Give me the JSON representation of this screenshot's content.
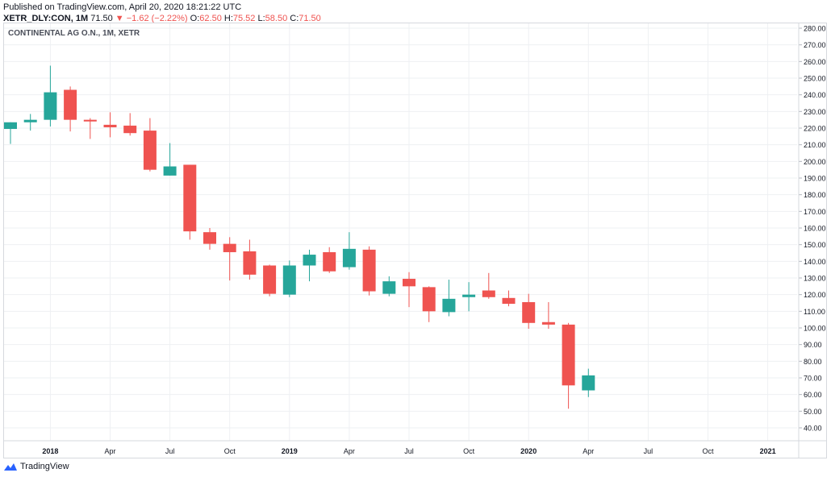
{
  "header": {
    "published": "Published on TradingView.com, April 20, 2020 18:21:22 UTC",
    "symbol": "XETR_DLY:CON, 1M",
    "last": "71.50",
    "change_arrow": "▼",
    "change": "−1.62 (−2.22%)",
    "o_label": "O:",
    "o": "62.50",
    "h_label": "H:",
    "h": "75.52",
    "l_label": "L:",
    "l": "58.50",
    "c_label": "C:",
    "c": "71.50"
  },
  "footer": {
    "brand": "TradingView",
    "logo_icon": "tradingview-logo-icon"
  },
  "colors": {
    "up": "#26a69a",
    "down": "#ef5350",
    "grid": "#eef0f3",
    "text": "#131722"
  },
  "chart_data": {
    "type": "candlestick",
    "title": "CONTINENTAL AG O.N., 1M, XETR",
    "ylim": [
      30,
      285
    ],
    "y_ticks": [
      "280.00",
      "270.00",
      "260.00",
      "250.00",
      "240.00",
      "230.00",
      "220.00",
      "210.00",
      "200.00",
      "190.00",
      "180.00",
      "170.00",
      "160.00",
      "150.00",
      "140.00",
      "130.00",
      "120.00",
      "110.00",
      "100.00",
      "90.00",
      "80.00",
      "70.00",
      "60.00",
      "50.00",
      "40.00"
    ],
    "x_ticks": [
      "2018",
      "Apr",
      "Jul",
      "Oct",
      "2019",
      "Apr",
      "Jul",
      "Oct",
      "2020",
      "Apr",
      "Jul",
      "Oct",
      "2021"
    ],
    "grid": true,
    "candles": [
      {
        "date": "2017-11",
        "o": 219.5,
        "h": 223.5,
        "l": 210.5,
        "c": 223.5
      },
      {
        "date": "2017-12",
        "o": 223.5,
        "h": 228.5,
        "l": 218.5,
        "c": 225.0
      },
      {
        "date": "2018-01",
        "o": 225.0,
        "h": 257.5,
        "l": 221.0,
        "c": 241.5
      },
      {
        "date": "2018-02",
        "o": 243.0,
        "h": 245.0,
        "l": 218.0,
        "c": 225.0
      },
      {
        "date": "2018-03",
        "o": 225.0,
        "h": 226.0,
        "l": 213.5,
        "c": 224.0
      },
      {
        "date": "2018-04",
        "o": 222.0,
        "h": 229.5,
        "l": 214.5,
        "c": 220.5
      },
      {
        "date": "2018-05",
        "o": 221.5,
        "h": 229.0,
        "l": 215.5,
        "c": 217.0
      },
      {
        "date": "2018-06",
        "o": 218.5,
        "h": 226.0,
        "l": 194.0,
        "c": 195.0
      },
      {
        "date": "2018-07",
        "o": 191.5,
        "h": 211.0,
        "l": 191.5,
        "c": 197.0
      },
      {
        "date": "2018-08",
        "o": 198.0,
        "h": 198.0,
        "l": 153.0,
        "c": 158.0
      },
      {
        "date": "2018-09",
        "o": 157.5,
        "h": 160.0,
        "l": 147.0,
        "c": 150.5
      },
      {
        "date": "2018-10",
        "o": 150.5,
        "h": 154.5,
        "l": 128.5,
        "c": 145.5
      },
      {
        "date": "2018-11",
        "o": 146.0,
        "h": 153.0,
        "l": 129.0,
        "c": 132.0
      },
      {
        "date": "2018-12",
        "o": 137.5,
        "h": 138.0,
        "l": 119.0,
        "c": 120.5
      },
      {
        "date": "2019-01",
        "o": 120.0,
        "h": 140.5,
        "l": 118.5,
        "c": 137.5
      },
      {
        "date": "2019-02",
        "o": 137.5,
        "h": 147.0,
        "l": 128.0,
        "c": 144.0
      },
      {
        "date": "2019-03",
        "o": 145.5,
        "h": 148.5,
        "l": 133.0,
        "c": 134.0
      },
      {
        "date": "2019-04",
        "o": 136.5,
        "h": 157.5,
        "l": 135.0,
        "c": 147.5
      },
      {
        "date": "2019-05",
        "o": 147.0,
        "h": 149.0,
        "l": 119.5,
        "c": 122.0
      },
      {
        "date": "2019-06",
        "o": 120.5,
        "h": 131.0,
        "l": 119.0,
        "c": 128.0
      },
      {
        "date": "2019-07",
        "o": 129.5,
        "h": 133.5,
        "l": 112.5,
        "c": 125.0
      },
      {
        "date": "2019-08",
        "o": 124.5,
        "h": 125.0,
        "l": 103.5,
        "c": 110.0
      },
      {
        "date": "2019-09",
        "o": 109.5,
        "h": 129.0,
        "l": 107.0,
        "c": 117.5
      },
      {
        "date": "2019-10",
        "o": 118.5,
        "h": 127.5,
        "l": 110.0,
        "c": 120.0
      },
      {
        "date": "2019-11",
        "o": 122.5,
        "h": 133.0,
        "l": 117.5,
        "c": 118.5
      },
      {
        "date": "2019-12",
        "o": 118.0,
        "h": 122.5,
        "l": 113.0,
        "c": 114.5
      },
      {
        "date": "2020-01",
        "o": 115.5,
        "h": 120.5,
        "l": 99.5,
        "c": 103.0
      },
      {
        "date": "2020-02",
        "o": 103.5,
        "h": 115.5,
        "l": 99.5,
        "c": 102.0
      },
      {
        "date": "2020-03",
        "o": 102.0,
        "h": 103.0,
        "l": 51.5,
        "c": 65.5
      },
      {
        "date": "2020-04",
        "o": 62.5,
        "h": 75.52,
        "l": 58.5,
        "c": 71.5
      }
    ]
  }
}
